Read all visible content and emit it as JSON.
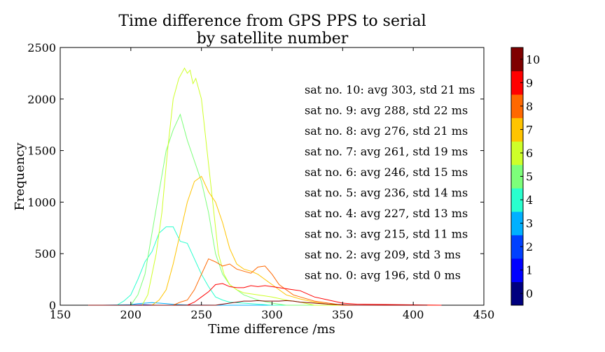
{
  "chart_data": {
    "type": "line",
    "title": "Time difference from GPS PPS to serial",
    "subtitle": "by satellite number",
    "xlabel": "Time difference /ms",
    "ylabel": "Frequency",
    "xlim": [
      150,
      450
    ],
    "ylim": [
      0,
      2500
    ],
    "xticks": [
      "150",
      "200",
      "250",
      "300",
      "350",
      "400",
      "450"
    ],
    "yticks": [
      "0",
      "500",
      "1000",
      "1500",
      "2000",
      "2500"
    ],
    "grid": false,
    "colorbar": {
      "ticks": [
        "0",
        "1",
        "2",
        "3",
        "4",
        "5",
        "6",
        "7",
        "8",
        "9",
        "10"
      ],
      "colors": [
        "#00007f",
        "#0000ff",
        "#0040ff",
        "#00b0ff",
        "#29ffce",
        "#7dff7a",
        "#ceff29",
        "#ffc400",
        "#ff6800",
        "#ff0000",
        "#7f0000"
      ]
    },
    "annotations": [
      "sat no.  10:  avg 303,  std 21 ms",
      "sat no.  9:  avg 288,  std 22 ms",
      "sat no.  8:  avg 276,  std 21 ms",
      "sat no.  7:  avg 261,  std 19 ms",
      "sat no.  6:  avg 246,  std 15 ms",
      "sat no.  5:  avg 236,  std 14 ms",
      "sat no.  4:  avg 227,  std 13 ms",
      "sat no.  3:  avg 215,  std 11 ms",
      "sat no.  2:  avg 209,  std 3 ms",
      "sat no.  0:  avg 196,  std 0 ms"
    ],
    "series": [
      {
        "sat": 0,
        "color": "#00007f",
        "x": [
          170,
          196,
          420
        ],
        "y": [
          0,
          0,
          0
        ]
      },
      {
        "sat": 2,
        "color": "#0040ff",
        "x": [
          170,
          200,
          209,
          218,
          230,
          420
        ],
        "y": [
          0,
          0,
          5,
          0,
          0,
          0
        ]
      },
      {
        "sat": 3,
        "color": "#00b0ff",
        "x": [
          180,
          200,
          205,
          210,
          215,
          220,
          225,
          230,
          240,
          260,
          420
        ],
        "y": [
          0,
          5,
          15,
          20,
          25,
          20,
          15,
          8,
          3,
          0,
          0
        ]
      },
      {
        "sat": 4,
        "color": "#29ffce",
        "x": [
          170,
          190,
          195,
          200,
          205,
          210,
          215,
          220,
          225,
          230,
          235,
          240,
          245,
          250,
          255,
          260,
          265,
          270,
          280,
          290,
          300,
          420
        ],
        "y": [
          0,
          0,
          40,
          100,
          250,
          420,
          520,
          700,
          760,
          760,
          620,
          600,
          450,
          300,
          180,
          80,
          50,
          30,
          20,
          10,
          0,
          0
        ]
      },
      {
        "sat": 5,
        "color": "#7dff7a",
        "x": [
          170,
          200,
          205,
          210,
          215,
          220,
          225,
          230,
          235,
          240,
          245,
          250,
          255,
          260,
          265,
          270,
          280,
          290,
          300,
          310,
          420
        ],
        "y": [
          0,
          0,
          100,
          300,
          700,
          1100,
          1500,
          1700,
          1850,
          1600,
          1400,
          1200,
          900,
          500,
          300,
          200,
          100,
          50,
          20,
          0,
          0
        ]
      },
      {
        "sat": 6,
        "color": "#ceff29",
        "x": [
          170,
          208,
          212,
          218,
          222,
          226,
          230,
          234,
          238,
          240,
          242,
          244,
          246,
          250,
          254,
          258,
          262,
          266,
          270,
          275,
          280,
          290,
          300,
          310,
          320,
          330,
          420
        ],
        "y": [
          0,
          0,
          100,
          500,
          900,
          1500,
          2000,
          2200,
          2300,
          2250,
          2280,
          2150,
          2200,
          2000,
          1500,
          1000,
          500,
          300,
          200,
          150,
          120,
          100,
          80,
          50,
          30,
          0,
          0
        ]
      },
      {
        "sat": 7,
        "color": "#ffc400",
        "x": [
          170,
          215,
          220,
          225,
          230,
          235,
          240,
          245,
          250,
          255,
          260,
          265,
          270,
          275,
          280,
          285,
          290,
          295,
          300,
          305,
          310,
          320,
          330,
          340,
          350,
          420
        ],
        "y": [
          0,
          0,
          50,
          150,
          400,
          700,
          1000,
          1200,
          1250,
          1100,
          1000,
          800,
          550,
          400,
          350,
          330,
          300,
          250,
          200,
          150,
          100,
          60,
          30,
          10,
          0,
          0
        ]
      },
      {
        "sat": 8,
        "color": "#ff6800",
        "x": [
          170,
          230,
          235,
          240,
          245,
          250,
          255,
          260,
          265,
          270,
          275,
          280,
          285,
          290,
          295,
          300,
          305,
          310,
          315,
          320,
          330,
          340,
          350,
          420
        ],
        "y": [
          0,
          0,
          30,
          50,
          150,
          300,
          450,
          420,
          380,
          400,
          350,
          330,
          310,
          370,
          380,
          300,
          200,
          150,
          100,
          80,
          40,
          20,
          0,
          0
        ]
      },
      {
        "sat": 9,
        "color": "#ff0000",
        "x": [
          170,
          240,
          245,
          250,
          255,
          260,
          265,
          270,
          275,
          280,
          285,
          290,
          295,
          300,
          305,
          310,
          315,
          320,
          330,
          340,
          350,
          360,
          420
        ],
        "y": [
          0,
          0,
          30,
          80,
          130,
          200,
          210,
          180,
          170,
          170,
          190,
          180,
          190,
          180,
          170,
          160,
          150,
          140,
          80,
          50,
          20,
          10,
          0
        ]
      },
      {
        "sat": 10,
        "color": "#7f0000",
        "x": [
          170,
          260,
          265,
          270,
          275,
          280,
          285,
          290,
          295,
          300,
          305,
          310,
          315,
          320,
          330,
          340,
          350,
          360,
          380,
          410
        ],
        "y": [
          0,
          0,
          10,
          20,
          30,
          40,
          40,
          45,
          40,
          40,
          40,
          45,
          40,
          30,
          20,
          10,
          5,
          0,
          0,
          0
        ]
      }
    ]
  }
}
